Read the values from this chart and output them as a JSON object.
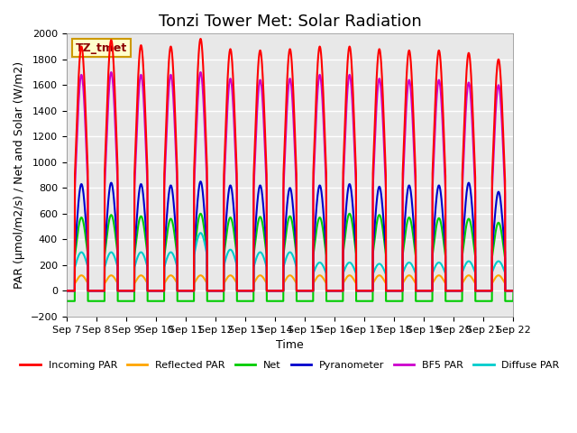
{
  "title": "Tonzi Tower Met: Solar Radiation",
  "ylabel": "PAR (μmol/m2/s) / Net and Solar (W/m2)",
  "xlabel": "Time",
  "ylim": [
    -200,
    2000
  ],
  "yticks": [
    -200,
    0,
    200,
    400,
    600,
    800,
    1000,
    1200,
    1400,
    1600,
    1800,
    2000
  ],
  "xtick_labels": [
    "Sep 7",
    "Sep 8",
    "Sep 9",
    "Sep 10",
    "Sep 11",
    "Sep 12",
    "Sep 13",
    "Sep 14",
    "Sep 15",
    "Sep 16",
    "Sep 17",
    "Sep 18",
    "Sep 19",
    "Sep 20",
    "Sep 21",
    "Sep 22"
  ],
  "n_days": 15,
  "legend_label": "TZ_tmet",
  "series": {
    "incoming_par": {
      "color": "#FF0000",
      "label": "Incoming PAR",
      "lw": 1.5
    },
    "reflected_par": {
      "color": "#FFA500",
      "label": "Reflected PAR",
      "lw": 1.5
    },
    "net": {
      "color": "#00CC00",
      "label": "Net",
      "lw": 1.5
    },
    "pyranometer": {
      "color": "#0000CC",
      "label": "Pyranometer",
      "lw": 1.5
    },
    "bf5_par": {
      "color": "#CC00CC",
      "label": "BF5 PAR",
      "lw": 1.5
    },
    "diffuse_par": {
      "color": "#00CCCC",
      "label": "Diffuse PAR",
      "lw": 1.5
    }
  },
  "plot_bg": "#E8E8E8",
  "grid_color": "#FFFFFF",
  "title_fontsize": 13,
  "axis_label_fontsize": 9,
  "tick_fontsize": 8,
  "legend_box_color": "#FFFFCC",
  "legend_box_edge": "#CC9900",
  "incoming_peaks": [
    1900,
    1950,
    1910,
    1900,
    1960,
    1880,
    1870,
    1880,
    1900,
    1900,
    1880,
    1870,
    1870,
    1850,
    1800
  ],
  "reflected_peaks": [
    120,
    120,
    120,
    120,
    120,
    120,
    120,
    120,
    120,
    120,
    120,
    120,
    120,
    120,
    120
  ],
  "net_peaks": [
    570,
    590,
    580,
    560,
    600,
    570,
    575,
    580,
    570,
    600,
    590,
    570,
    565,
    560,
    530
  ],
  "pyrano_peaks": [
    830,
    840,
    830,
    820,
    850,
    820,
    820,
    800,
    820,
    830,
    810,
    820,
    820,
    840,
    770
  ],
  "bf5_peaks": [
    1680,
    1700,
    1680,
    1680,
    1700,
    1650,
    1640,
    1650,
    1680,
    1680,
    1650,
    1640,
    1640,
    1620,
    1600
  ],
  "diffuse_peaks": [
    300,
    300,
    300,
    300,
    450,
    320,
    300,
    300,
    220,
    220,
    210,
    220,
    220,
    230,
    230
  ]
}
